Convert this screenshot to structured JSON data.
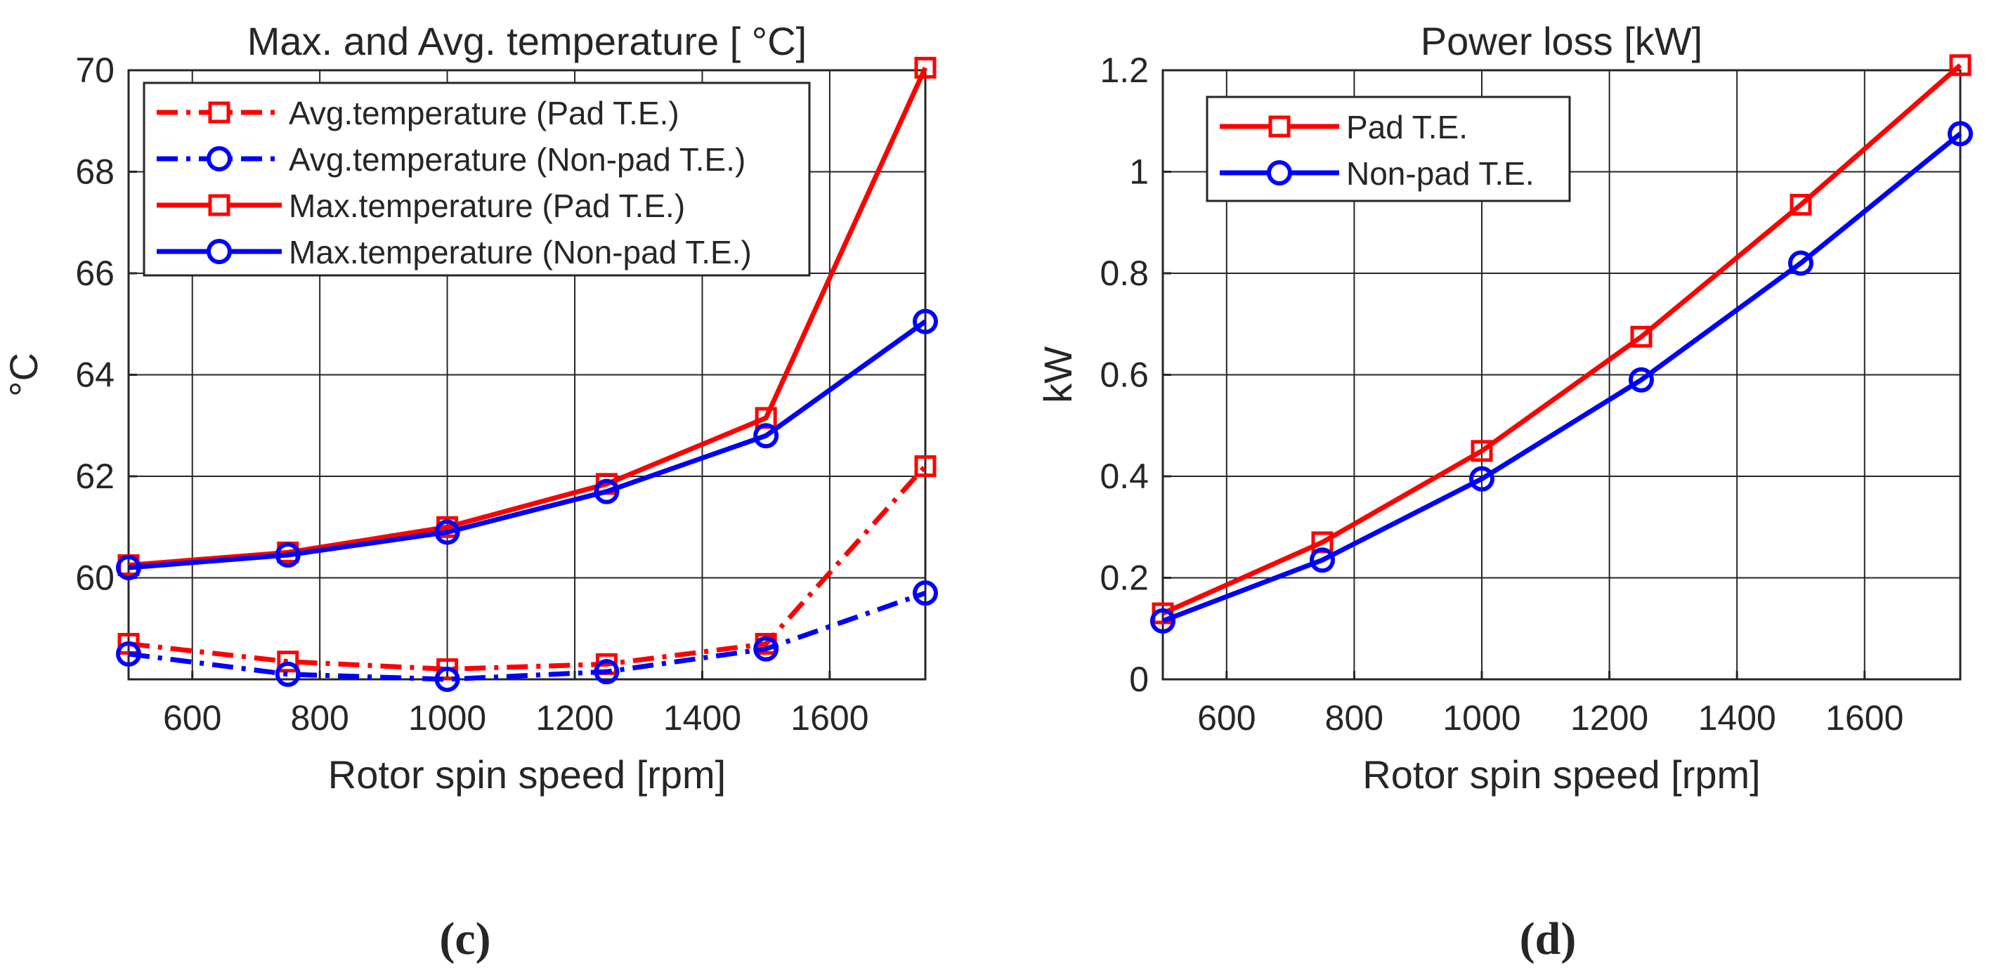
{
  "figure": {
    "panels": [
      "(c)",
      "(d)"
    ]
  },
  "chart_data": [
    {
      "type": "line",
      "title": "Max. and Avg. temperature [ °C]",
      "xlabel": "Rotor spin speed [rpm]",
      "ylabel": "°C",
      "xlim": [
        500,
        1750
      ],
      "ylim": [
        58,
        70
      ],
      "xticks": [
        600,
        800,
        1000,
        1200,
        1400,
        1600
      ],
      "yticks": [
        60,
        62,
        64,
        66,
        68,
        70
      ],
      "xtick_labels": [
        "600",
        "800",
        "1000",
        "1200",
        "1400",
        "1600"
      ],
      "ytick_labels": [
        "60",
        "62",
        "64",
        "66",
        "68",
        "70"
      ],
      "grid": true,
      "legend_position": "top-left",
      "x": [
        500,
        750,
        1000,
        1250,
        1500,
        1750
      ],
      "series": [
        {
          "name": "Avg.temperature (Pad T.E.)",
          "color": "#ff0000",
          "marker": "square",
          "dash": "dash-dot",
          "values": [
            58.7,
            58.35,
            58.2,
            58.3,
            58.7,
            62.2
          ]
        },
        {
          "name": "Avg.temperature (Non-pad T.E.)",
          "color": "#0000ff",
          "marker": "circle",
          "dash": "dash-dot",
          "values": [
            58.5,
            58.1,
            58.0,
            58.15,
            58.6,
            59.7
          ]
        },
        {
          "name": "Max.temperature (Pad T.E.)",
          "color": "#ff0000",
          "marker": "square",
          "dash": "solid",
          "values": [
            60.25,
            60.5,
            61.0,
            61.85,
            63.15,
            70.05
          ]
        },
        {
          "name": "Max.temperature (Non-pad T.E.)",
          "color": "#0000ff",
          "marker": "circle",
          "dash": "solid",
          "values": [
            60.2,
            60.45,
            60.9,
            61.7,
            62.8,
            65.05
          ]
        }
      ]
    },
    {
      "type": "line",
      "title": "Power loss [kW]",
      "xlabel": "Rotor spin speed [rpm]",
      "ylabel": "kW",
      "xlim": [
        500,
        1750
      ],
      "ylim": [
        0,
        1.2
      ],
      "xticks": [
        600,
        800,
        1000,
        1200,
        1400,
        1600
      ],
      "yticks": [
        0,
        0.2,
        0.4,
        0.6,
        0.8,
        1.0,
        1.2
      ],
      "xtick_labels": [
        "600",
        "800",
        "1000",
        "1200",
        "1400",
        "1600"
      ],
      "ytick_labels": [
        "0",
        "0.2",
        "0.4",
        "0.6",
        "0.8",
        "1",
        "1.2"
      ],
      "grid": true,
      "legend_position": "top-left",
      "x": [
        500,
        750,
        1000,
        1250,
        1500,
        1750
      ],
      "series": [
        {
          "name": "Pad T.E.",
          "color": "#ff0000",
          "marker": "square",
          "dash": "solid",
          "values": [
            0.13,
            0.27,
            0.45,
            0.675,
            0.935,
            1.21
          ]
        },
        {
          "name": "Non-pad T.E.",
          "color": "#0000ff",
          "marker": "circle",
          "dash": "solid",
          "values": [
            0.115,
            0.235,
            0.395,
            0.59,
            0.82,
            1.075
          ]
        }
      ]
    }
  ]
}
